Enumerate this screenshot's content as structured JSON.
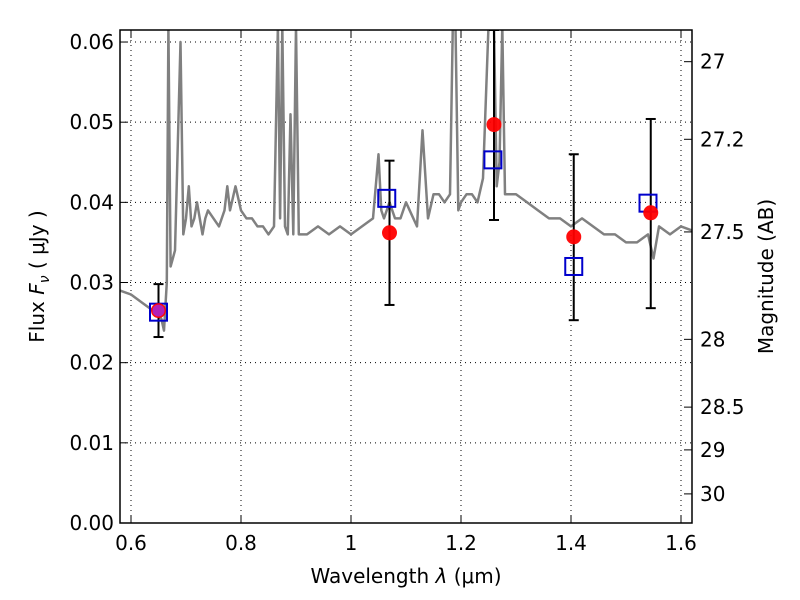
{
  "chart_data": {
    "type": "scatter",
    "xlabel": "Wavelength",
    "xlabel_symbol": "λ",
    "xlabel_unit": "(μm)",
    "ylabel": "Flux",
    "ylabel_symbol": "F",
    "ylabel_subscript": "ν",
    "ylabel_unit": "( μJy )",
    "y2label": "Magnitude (AB)",
    "xlim": [
      0.58,
      1.62
    ],
    "ylim": [
      0.0,
      0.0615
    ],
    "grid": true,
    "x_ticks": [
      0.6,
      0.8,
      1.0,
      1.2,
      1.4,
      1.6
    ],
    "x_tick_labels": [
      "0.6",
      "0.8",
      "1",
      "1.2",
      "1.4",
      "1.6"
    ],
    "y_ticks": [
      0.0,
      0.01,
      0.02,
      0.03,
      0.04,
      0.05,
      0.06
    ],
    "y_tick_labels": [
      "0.00",
      "0.01",
      "0.02",
      "0.03",
      "0.04",
      "0.05",
      "0.06"
    ],
    "mag_ticks": [
      27,
      27.2,
      27.5,
      28,
      28.5,
      29,
      30
    ],
    "mag_tick_labels": [
      "27",
      "27.2",
      "27.5",
      "28",
      "28.5",
      "29",
      "30"
    ],
    "series": [
      {
        "kind": "line",
        "color": "#808080",
        "x": [
          0.58,
          0.6,
          0.62,
          0.64,
          0.655,
          0.66,
          0.665,
          0.668,
          0.672,
          0.676,
          0.68,
          0.69,
          0.695,
          0.7,
          0.705,
          0.71,
          0.715,
          0.72,
          0.73,
          0.735,
          0.74,
          0.75,
          0.76,
          0.77,
          0.775,
          0.78,
          0.79,
          0.8,
          0.81,
          0.82,
          0.83,
          0.84,
          0.85,
          0.86,
          0.867,
          0.871,
          0.875,
          0.88,
          0.885,
          0.89,
          0.895,
          0.9,
          0.905,
          0.92,
          0.94,
          0.96,
          0.98,
          1.0,
          1.02,
          1.04,
          1.05,
          1.055,
          1.06,
          1.07,
          1.08,
          1.09,
          1.1,
          1.12,
          1.13,
          1.14,
          1.15,
          1.16,
          1.17,
          1.18,
          1.185,
          1.19,
          1.195,
          1.2,
          1.21,
          1.22,
          1.23,
          1.24,
          1.25,
          1.26,
          1.265,
          1.27,
          1.275,
          1.28,
          1.29,
          1.3,
          1.32,
          1.34,
          1.36,
          1.38,
          1.4,
          1.42,
          1.44,
          1.46,
          1.48,
          1.5,
          1.52,
          1.54,
          1.55,
          1.56,
          1.58,
          1.6,
          1.62
        ],
        "y": [
          0.029,
          0.0285,
          0.0275,
          0.0265,
          0.0255,
          0.024,
          0.03,
          0.062,
          0.032,
          0.033,
          0.034,
          0.06,
          0.036,
          0.038,
          0.042,
          0.037,
          0.038,
          0.04,
          0.036,
          0.038,
          0.039,
          0.038,
          0.037,
          0.039,
          0.042,
          0.039,
          0.042,
          0.039,
          0.038,
          0.038,
          0.037,
          0.037,
          0.036,
          0.037,
          0.062,
          0.038,
          0.062,
          0.037,
          0.036,
          0.051,
          0.036,
          0.062,
          0.036,
          0.036,
          0.037,
          0.036,
          0.037,
          0.036,
          0.037,
          0.038,
          0.046,
          0.039,
          0.038,
          0.04,
          0.038,
          0.038,
          0.04,
          0.037,
          0.049,
          0.038,
          0.041,
          0.041,
          0.04,
          0.041,
          0.062,
          0.062,
          0.039,
          0.04,
          0.041,
          0.041,
          0.04,
          0.043,
          0.062,
          0.062,
          0.042,
          0.045,
          0.062,
          0.041,
          0.041,
          0.041,
          0.04,
          0.039,
          0.038,
          0.038,
          0.037,
          0.038,
          0.037,
          0.036,
          0.036,
          0.035,
          0.035,
          0.036,
          0.033,
          0.037,
          0.036,
          0.037,
          0.0365
        ]
      },
      {
        "kind": "points",
        "marker": "circle",
        "color": "#ff0000",
        "x": [
          0.65,
          1.07,
          1.26,
          1.405,
          1.545
        ],
        "y": [
          0.0265,
          0.0362,
          0.0497,
          0.0357,
          0.0387
        ],
        "yerr_low": [
          0.0232,
          0.0272,
          0.0378,
          0.0253,
          0.0268
        ],
        "yerr_high": [
          0.0298,
          0.0452,
          0.0615,
          0.046,
          0.0504
        ]
      },
      {
        "kind": "points",
        "marker": "square-open",
        "color": "#0000cc",
        "x": [
          0.65,
          1.065,
          1.258,
          1.405,
          1.54
        ],
        "y": [
          0.0263,
          0.0405,
          0.0453,
          0.032,
          0.0399
        ]
      }
    ]
  }
}
